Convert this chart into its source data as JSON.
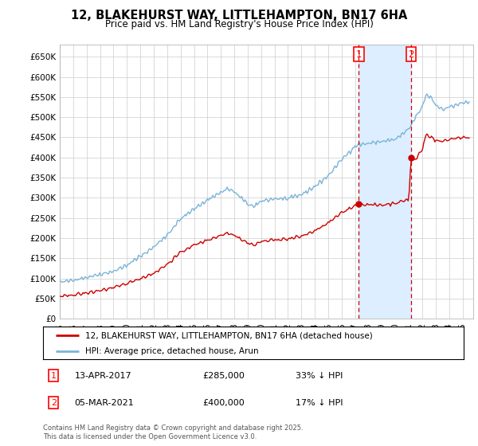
{
  "title": "12, BLAKEHURST WAY, LITTLEHAMPTON, BN17 6HA",
  "subtitle": "Price paid vs. HM Land Registry's House Price Index (HPI)",
  "ylim": [
    0,
    680000
  ],
  "yticks": [
    0,
    50000,
    100000,
    150000,
    200000,
    250000,
    300000,
    350000,
    400000,
    450000,
    500000,
    550000,
    600000,
    650000
  ],
  "ytick_labels": [
    "£0",
    "£50K",
    "£100K",
    "£150K",
    "£200K",
    "£250K",
    "£300K",
    "£350K",
    "£400K",
    "£450K",
    "£500K",
    "£550K",
    "£600K",
    "£650K"
  ],
  "hpi_color": "#7ab4d8",
  "price_color": "#cc0000",
  "vline_color": "#cc0000",
  "shade_color": "#dceeff",
  "sale1_date": 2017.28,
  "sale1_price": 285000,
  "sale1_label": "1",
  "sale2_date": 2021.17,
  "sale2_price": 400000,
  "sale2_label": "2",
  "legend_line1": "12, BLAKEHURST WAY, LITTLEHAMPTON, BN17 6HA (detached house)",
  "legend_line2": "HPI: Average price, detached house, Arun",
  "background_color": "#ffffff",
  "grid_color": "#cccccc",
  "xmin": 1995,
  "xmax": 2025.8
}
